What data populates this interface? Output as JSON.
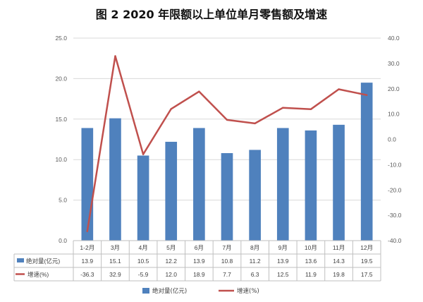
{
  "chart_data": {
    "type": "bar",
    "title": "图 2 2020 年限额以上单位单月零售额及增速",
    "categories": [
      "1-2月",
      "3月",
      "4月",
      "5月",
      "6月",
      "7月",
      "8月",
      "9月",
      "10月",
      "11月",
      "12月"
    ],
    "series": [
      {
        "name": "绝对量(亿元)",
        "type": "bar",
        "axis": "left",
        "color": "#4f81bd",
        "values": [
          13.9,
          15.1,
          10.5,
          12.2,
          13.9,
          10.8,
          11.2,
          13.9,
          13.6,
          14.3,
          19.5
        ],
        "labels": [
          "13.9",
          "15.1",
          "10.5",
          "12.2",
          "13.9",
          "10.8",
          "11.2",
          "13.9",
          "13.6",
          "14.3",
          "19.5"
        ]
      },
      {
        "name": "增速(%)",
        "type": "line",
        "axis": "right",
        "color": "#c0504d",
        "values": [
          -36.3,
          32.9,
          -5.9,
          12.0,
          18.9,
          7.7,
          6.3,
          12.5,
          11.9,
          19.8,
          17.5
        ],
        "labels": [
          "-36.3",
          "32.9",
          "-5.9",
          "12.0",
          "18.9",
          "7.7",
          "6.3",
          "12.5",
          "11.9",
          "19.8",
          "17.5"
        ]
      }
    ],
    "y_left": {
      "min": 0,
      "max": 25,
      "ticks": [
        "0.0",
        "5.0",
        "10.0",
        "15.0",
        "20.0",
        "25.0"
      ]
    },
    "y_right": {
      "min": -40,
      "max": 40,
      "ticks": [
        "-40.0",
        "-30.0",
        "-20.0",
        "-10.0",
        "0.0",
        "10.0",
        "20.0",
        "30.0",
        "40.0"
      ]
    },
    "grid": true,
    "data_table": true,
    "legend_position": "bottom"
  }
}
